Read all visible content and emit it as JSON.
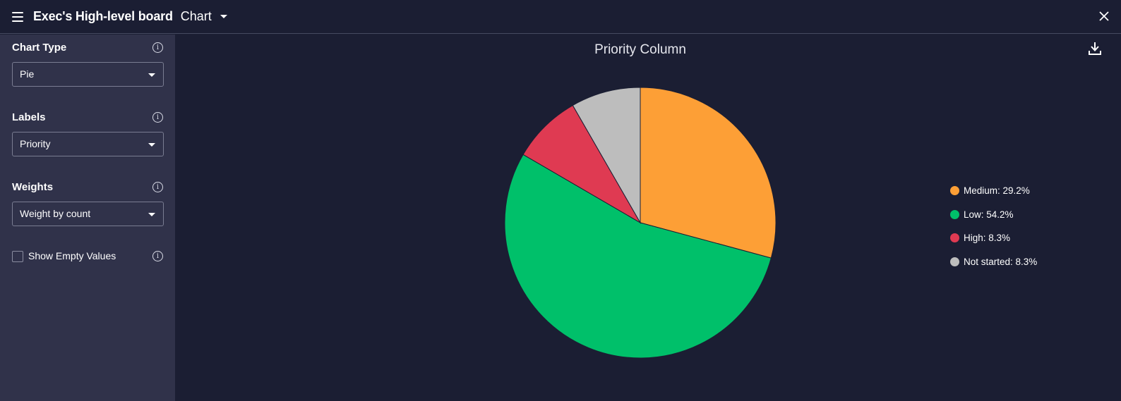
{
  "header": {
    "board_title": "Exec's High-level board",
    "view_name": "Chart"
  },
  "sidebar": {
    "chart_type": {
      "label": "Chart Type",
      "value": "Pie"
    },
    "labels": {
      "label": "Labels",
      "value": "Priority"
    },
    "weights": {
      "label": "Weights",
      "value": "Weight by count"
    },
    "show_empty": {
      "label": "Show Empty Values",
      "checked": false
    }
  },
  "chart_data": {
    "type": "pie",
    "title": "Priority Column",
    "legend_position": "right",
    "slices": [
      {
        "label": "Medium",
        "value": 29.2,
        "display": "Medium: 29.2%",
        "color": "#fd9f36"
      },
      {
        "label": "Low",
        "value": 54.2,
        "display": "Low: 54.2%",
        "color": "#00c06a"
      },
      {
        "label": "High",
        "value": 8.3,
        "display": "High: 8.3%",
        "color": "#df3a52"
      },
      {
        "label": "Not started",
        "value": 8.3,
        "display": "Not started: 8.3%",
        "color": "#bdbdbd"
      }
    ]
  }
}
